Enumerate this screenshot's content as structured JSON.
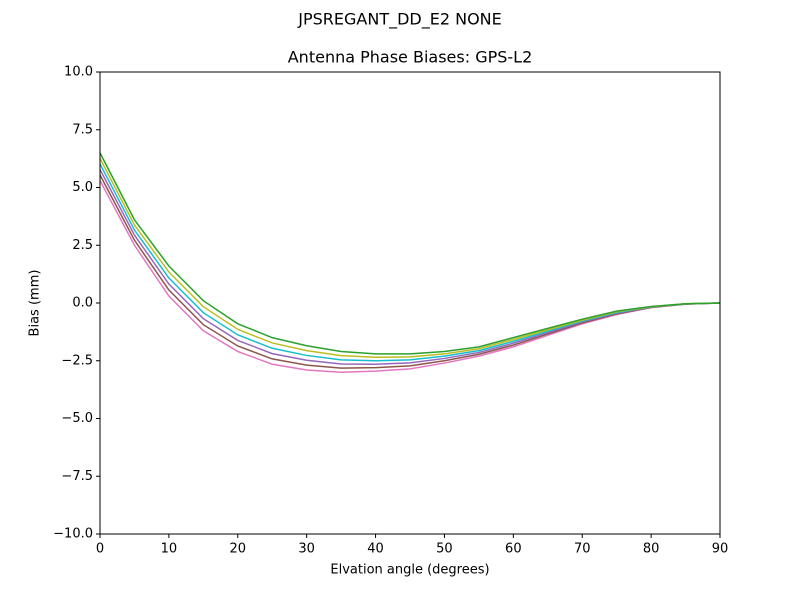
{
  "chart_data": {
    "type": "line",
    "suptitle": "JPSREGANT_DD_E2 NONE",
    "title": "Antenna Phase Biases: GPS-L2",
    "xlabel": "Elvation angle (degrees)",
    "ylabel": "Bias (mm)",
    "x": [
      0,
      5,
      10,
      15,
      20,
      25,
      30,
      35,
      40,
      45,
      50,
      55,
      60,
      65,
      70,
      75,
      80,
      85,
      90
    ],
    "xlim": [
      0,
      90
    ],
    "xticks": [
      0,
      10,
      20,
      30,
      40,
      50,
      60,
      70,
      80,
      90
    ],
    "ylim": [
      -10,
      10
    ],
    "yticks": [
      {
        "value": -10,
        "label": "−10.0"
      },
      {
        "value": -7.5,
        "label": "−7.5"
      },
      {
        "value": -5,
        "label": "−5.0"
      },
      {
        "value": -2.5,
        "label": "−2.5"
      },
      {
        "value": 0,
        "label": "0.0"
      },
      2.5,
      {
        "value": 5,
        "label": "5.0"
      },
      7.5,
      {
        "value": 10,
        "label": "10.0"
      }
    ],
    "grid": false,
    "series": [
      {
        "color": "#e377c2",
        "values": [
          5.3,
          2.5,
          0.3,
          -1.2,
          -2.1,
          -2.65,
          -2.9,
          -3.0,
          -2.95,
          -2.85,
          -2.6,
          -2.3,
          -1.9,
          -1.4,
          -0.9,
          -0.5,
          -0.2,
          -0.05,
          0
        ]
      },
      {
        "color": "#8c564b",
        "values": [
          5.54,
          2.72,
          0.56,
          -0.94,
          -1.86,
          -2.42,
          -2.69,
          -2.82,
          -2.8,
          -2.72,
          -2.5,
          -2.22,
          -1.82,
          -1.34,
          -0.86,
          -0.47,
          -0.19,
          -0.05,
          0
        ]
      },
      {
        "color": "#9467bd",
        "values": [
          5.78,
          2.94,
          0.82,
          -0.68,
          -1.62,
          -2.19,
          -2.48,
          -2.64,
          -2.65,
          -2.59,
          -2.4,
          -2.14,
          -1.74,
          -1.28,
          -0.82,
          -0.44,
          -0.18,
          -0.04,
          0
        ]
      },
      {
        "color": "#17becf",
        "values": [
          6.02,
          3.16,
          1.08,
          -0.42,
          -1.38,
          -1.96,
          -2.27,
          -2.46,
          -2.5,
          -2.46,
          -2.3,
          -2.06,
          -1.66,
          -1.22,
          -0.78,
          -0.41,
          -0.17,
          -0.04,
          0
        ]
      },
      {
        "color": "#bcbd22",
        "values": [
          6.26,
          3.38,
          1.34,
          -0.16,
          -1.14,
          -1.73,
          -2.06,
          -2.28,
          -2.35,
          -2.33,
          -2.2,
          -1.98,
          -1.58,
          -1.16,
          -0.74,
          -0.38,
          -0.16,
          -0.03,
          0
        ]
      },
      {
        "color": "#2ca02c",
        "values": [
          6.5,
          3.6,
          1.6,
          0.1,
          -0.9,
          -1.5,
          -1.85,
          -2.1,
          -2.2,
          -2.2,
          -2.1,
          -1.9,
          -1.5,
          -1.1,
          -0.7,
          -0.35,
          -0.15,
          -0.03,
          0
        ]
      }
    ]
  }
}
